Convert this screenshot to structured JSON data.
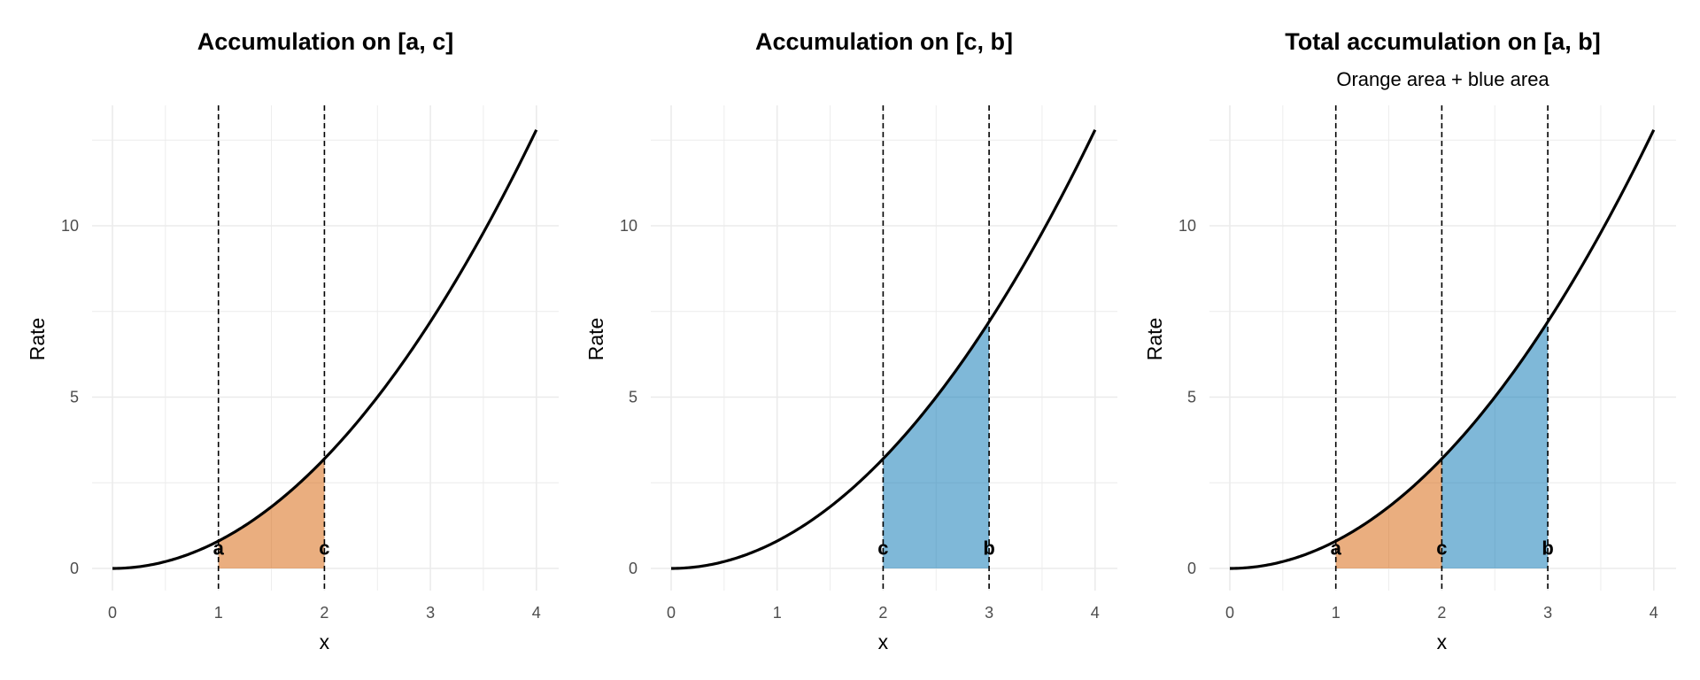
{
  "chart_data": [
    {
      "type": "area",
      "title": "Accumulation on [a, c]",
      "subtitle": "",
      "xlabel": "x",
      "ylabel": "Rate",
      "xlim": [
        0,
        4
      ],
      "ylim": [
        0,
        12.8
      ],
      "x_ticks": [
        "0",
        "1",
        "2",
        "3",
        "4"
      ],
      "y_ticks": [
        "0",
        "5",
        "10"
      ],
      "curve": {
        "formula": "y = 0.8*x^2",
        "coef": 0.8,
        "x_range": [
          0,
          4
        ]
      },
      "shaded": [
        {
          "from": 1,
          "to": 2,
          "color": "#D55E00",
          "opacity": 0.5
        }
      ],
      "vlines": [
        {
          "x": 1,
          "label": "a"
        },
        {
          "x": 2,
          "label": "c"
        }
      ],
      "grid": true
    },
    {
      "type": "area",
      "title": "Accumulation on [c, b]",
      "subtitle": "",
      "xlabel": "x",
      "ylabel": "Rate",
      "xlim": [
        0,
        4
      ],
      "ylim": [
        0,
        12.8
      ],
      "x_ticks": [
        "0",
        "1",
        "2",
        "3",
        "4"
      ],
      "y_ticks": [
        "0",
        "5",
        "10"
      ],
      "curve": {
        "formula": "y = 0.8*x^2",
        "coef": 0.8,
        "x_range": [
          0,
          4
        ]
      },
      "shaded": [
        {
          "from": 2,
          "to": 3,
          "color": "#0072B2",
          "opacity": 0.5
        }
      ],
      "vlines": [
        {
          "x": 2,
          "label": "c"
        },
        {
          "x": 3,
          "label": "b"
        }
      ],
      "grid": true
    },
    {
      "type": "area",
      "title": "Total accumulation on [a, b]",
      "subtitle": "Orange area + blue area",
      "xlabel": "x",
      "ylabel": "Rate",
      "xlim": [
        0,
        4
      ],
      "ylim": [
        0,
        12.8
      ],
      "x_ticks": [
        "0",
        "1",
        "2",
        "3",
        "4"
      ],
      "y_ticks": [
        "0",
        "5",
        "10"
      ],
      "curve": {
        "formula": "y = 0.8*x^2",
        "coef": 0.8,
        "x_range": [
          0,
          4
        ]
      },
      "shaded": [
        {
          "from": 1,
          "to": 2,
          "color": "#D55E00",
          "opacity": 0.5
        },
        {
          "from": 2,
          "to": 3,
          "color": "#0072B2",
          "opacity": 0.5
        }
      ],
      "vlines": [
        {
          "x": 1,
          "label": "a"
        },
        {
          "x": 2,
          "label": "c"
        },
        {
          "x": 3,
          "label": "b"
        }
      ],
      "grid": true
    }
  ]
}
